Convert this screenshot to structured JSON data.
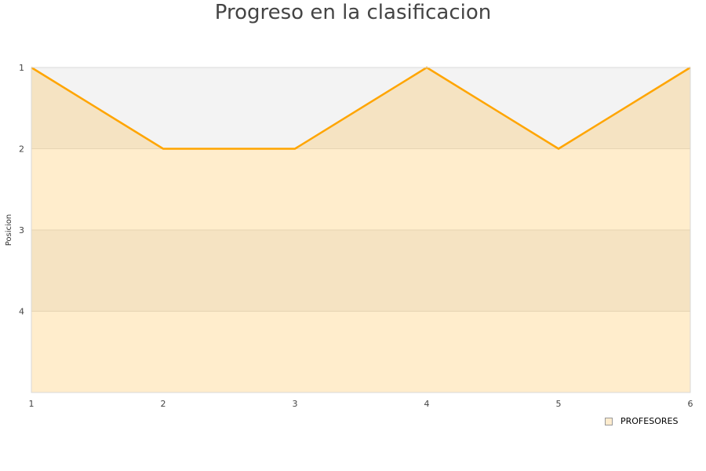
{
  "chart_data": {
    "type": "area",
    "title": "Progreso en la clasificacion",
    "xlabel": "",
    "ylabel": "Posicion",
    "x": [
      1,
      2,
      3,
      4,
      5,
      6
    ],
    "series": [
      {
        "name": "PROFESORES",
        "values": [
          1,
          2,
          2,
          1,
          2,
          1
        ],
        "color": "#ffa500"
      }
    ],
    "xlim": [
      1,
      6
    ],
    "ylim": [
      1,
      5
    ],
    "y_reversed": true,
    "x_ticks": [
      1,
      2,
      3,
      4,
      5,
      6
    ],
    "y_ticks": [
      1,
      2,
      3,
      4
    ],
    "band_colors": [
      "#f3f3f3",
      "#ffffff"
    ],
    "legend": "bottom-right"
  }
}
